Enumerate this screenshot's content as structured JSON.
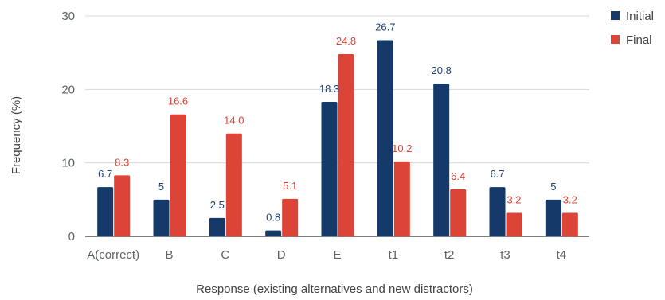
{
  "chart_data": {
    "type": "bar",
    "title": "",
    "xlabel": "Response (existing alternatives and new distractors)",
    "ylabel": "Frequency (%)",
    "ylim": [
      0,
      30
    ],
    "yticks": [
      "0",
      "10",
      "20",
      "30"
    ],
    "grid": true,
    "legend_position": "top-right",
    "categories": [
      "A(correct)",
      "B",
      "C",
      "D",
      "E",
      "t1",
      "t2",
      "t3",
      "t4"
    ],
    "series": [
      {
        "name": "Initial",
        "color": "#153a6a",
        "values": [
          6.7,
          5,
          2.5,
          0.8,
          18.3,
          26.7,
          20.8,
          6.7,
          5
        ],
        "labels": [
          "6.7",
          "5",
          "2.5",
          "0.8",
          "18.3",
          "26.7",
          "20.8",
          "6.7",
          "5"
        ]
      },
      {
        "name": "Final",
        "color": "#dc4437",
        "values": [
          8.3,
          16.6,
          14.0,
          5.1,
          24.8,
          10.2,
          6.4,
          3.2,
          3.2
        ],
        "labels": [
          "8.3",
          "16.6",
          "14.0",
          "5.1",
          "24.8",
          "10.2",
          "6.4",
          "3.2",
          "3.2"
        ]
      }
    ]
  }
}
